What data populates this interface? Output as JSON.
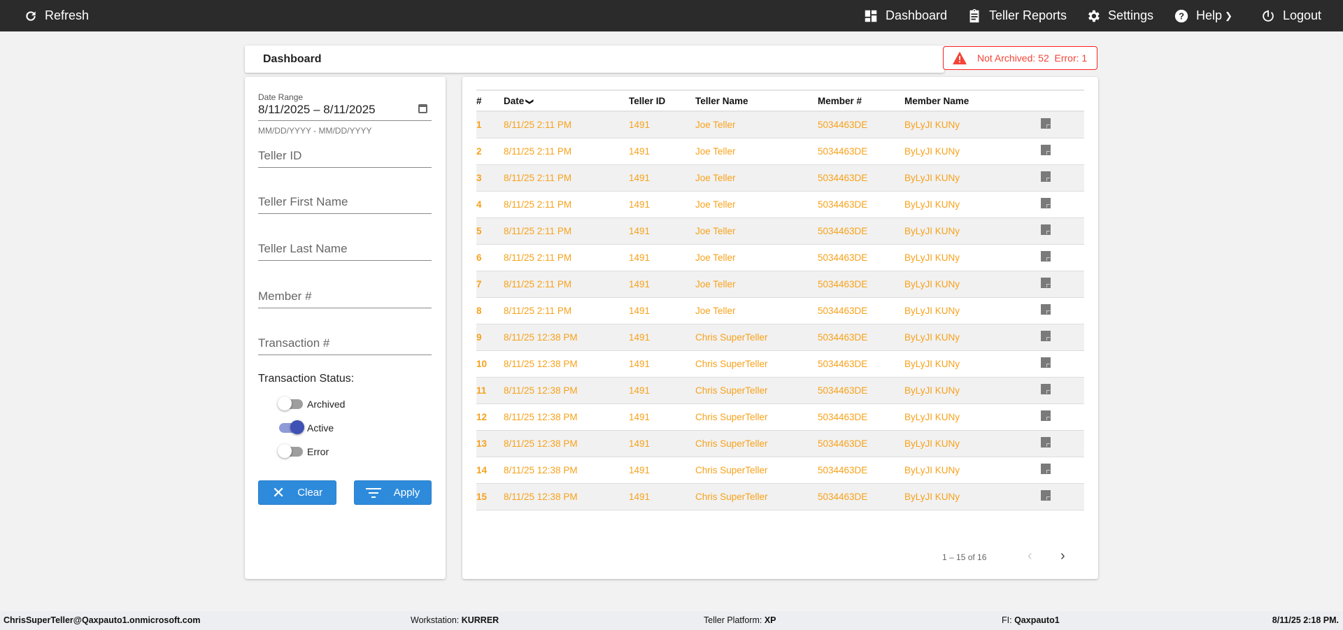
{
  "topbar": {
    "refresh": "Refresh",
    "dashboard": "Dashboard",
    "teller_reports": "Teller Reports",
    "settings": "Settings",
    "help": "Help",
    "logout": "Logout"
  },
  "page_title": "Dashboard",
  "alert": {
    "text": "Not Archived: 52  Error: 1",
    "color": "#f44336"
  },
  "filters": {
    "date_range_label": "Date Range",
    "date_range_value": "8/11/2025 – 8/11/2025",
    "date_hint": "MM/DD/YYYY - MM/DD/YYYY",
    "teller_id": "Teller ID",
    "teller_first": "Teller First Name",
    "teller_last": "Teller Last Name",
    "member": "Member #",
    "transaction": "Transaction #",
    "status_label": "Transaction Status:",
    "toggles": [
      {
        "label": "Archived",
        "on": false
      },
      {
        "label": "Active",
        "on": true
      },
      {
        "label": "Error",
        "on": false
      }
    ],
    "clear": "Clear",
    "apply": "Apply"
  },
  "table": {
    "headers": [
      "#",
      "Date",
      "Teller ID",
      "Teller Name",
      "Member #",
      "Member Name"
    ],
    "rows": [
      [
        "1",
        "8/11/25 2:11 PM",
        "1491",
        "Joe Teller",
        "5034463DE",
        "ByLyJI KUNy"
      ],
      [
        "2",
        "8/11/25 2:11 PM",
        "1491",
        "Joe Teller",
        "5034463DE",
        "ByLyJI KUNy"
      ],
      [
        "3",
        "8/11/25 2:11 PM",
        "1491",
        "Joe Teller",
        "5034463DE",
        "ByLyJI KUNy"
      ],
      [
        "4",
        "8/11/25 2:11 PM",
        "1491",
        "Joe Teller",
        "5034463DE",
        "ByLyJI KUNy"
      ],
      [
        "5",
        "8/11/25 2:11 PM",
        "1491",
        "Joe Teller",
        "5034463DE",
        "ByLyJI KUNy"
      ],
      [
        "6",
        "8/11/25 2:11 PM",
        "1491",
        "Joe Teller",
        "5034463DE",
        "ByLyJI KUNy"
      ],
      [
        "7",
        "8/11/25 2:11 PM",
        "1491",
        "Joe Teller",
        "5034463DE",
        "ByLyJI KUNy"
      ],
      [
        "8",
        "8/11/25 2:11 PM",
        "1491",
        "Joe Teller",
        "5034463DE",
        "ByLyJI KUNy"
      ],
      [
        "9",
        "8/11/25 12:38 PM",
        "1491",
        "Chris SuperTeller",
        "5034463DE",
        "ByLyJI KUNy"
      ],
      [
        "10",
        "8/11/25 12:38 PM",
        "1491",
        "Chris SuperTeller",
        "5034463DE",
        "ByLyJI KUNy"
      ],
      [
        "11",
        "8/11/25 12:38 PM",
        "1491",
        "Chris SuperTeller",
        "5034463DE",
        "ByLyJI KUNy"
      ],
      [
        "12",
        "8/11/25 12:38 PM",
        "1491",
        "Chris SuperTeller",
        "5034463DE",
        "ByLyJI KUNy"
      ],
      [
        "13",
        "8/11/25 12:38 PM",
        "1491",
        "Chris SuperTeller",
        "5034463DE",
        "ByLyJI KUNy"
      ],
      [
        "14",
        "8/11/25 12:38 PM",
        "1491",
        "Chris SuperTeller",
        "5034463DE",
        "ByLyJI KUNy"
      ],
      [
        "15",
        "8/11/25 12:38 PM",
        "1491",
        "Chris SuperTeller",
        "5034463DE",
        "ByLyJI KUNy"
      ]
    ],
    "row_color": "#f7a21b"
  },
  "pagination": {
    "range": "1 – 15 of 16"
  },
  "footer": {
    "user": "ChrisSuperTeller@Qaxpauto1.onmicrosoft.com",
    "workstation_label": "Workstation: ",
    "workstation": "KURRER",
    "platform_label": "Teller Platform: ",
    "platform": "XP",
    "fi_label": "FI: ",
    "fi": "Qaxpauto1",
    "datetime": "8/11/25 2:18 PM."
  }
}
